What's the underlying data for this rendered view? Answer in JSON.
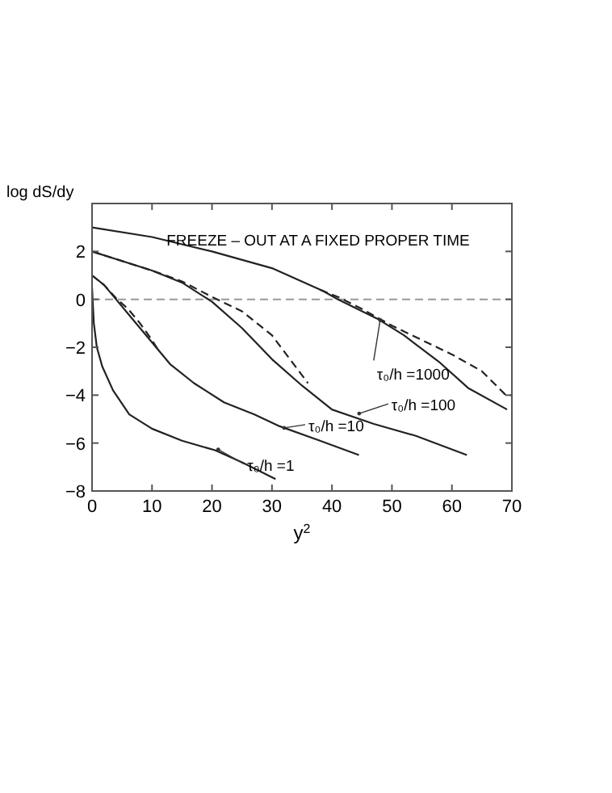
{
  "chart_data": {
    "type": "line",
    "title": "FREEZE – OUT AT A FIXED PROPER TIME",
    "xlabel": "y$^{2}$",
    "ylabel": "log dS/dy",
    "xlim": [
      0,
      70
    ],
    "xticks": [
      0,
      10,
      20,
      30,
      40,
      50,
      60,
      70
    ],
    "ylim": [
      -8,
      4
    ],
    "yticks": [
      -8,
      -6,
      -4,
      -2,
      0,
      2,
      {
        "value": 4,
        "label": null
      }
    ],
    "grid": false,
    "series": [
      {
        "color": "#222222",
        "line_style": "solid",
        "x": [
          0,
          0.3,
          0.8,
          1.7,
          3.5,
          6.2,
          10,
          15,
          20.5,
          25,
          30.6
        ],
        "values": [
          0.5,
          -1,
          -2,
          -2.8,
          -3.8,
          -4.8,
          -5.4,
          -5.9,
          -6.3,
          -6.8,
          -7.5
        ]
      },
      {
        "color": "#222222",
        "line_style": "solid",
        "x": [
          0,
          2,
          4,
          6,
          8,
          10,
          13,
          17,
          22,
          27,
          31.3,
          38,
          44.5
        ],
        "values": [
          1,
          0.6,
          0,
          -0.6,
          -1.2,
          -1.8,
          -2.7,
          -3.5,
          -4.3,
          -4.8,
          -5.3,
          -5.9,
          -6.5
        ]
      },
      {
        "color": "#222222",
        "line_style": "dashed",
        "x": [
          0,
          2,
          4,
          6,
          8,
          10,
          11
        ],
        "values": [
          1,
          0.6,
          0.05,
          -0.4,
          -1,
          -1.7,
          -2.1
        ]
      },
      {
        "color": "#222222",
        "line_style": "solid",
        "x": [
          0,
          5,
          10,
          15,
          20,
          25,
          30,
          35,
          40,
          47,
          54,
          62.5
        ],
        "values": [
          2,
          1.6,
          1.2,
          0.7,
          -0.1,
          -1.2,
          -2.5,
          -3.6,
          -4.6,
          -5.2,
          -5.7,
          -6.5
        ]
      },
      {
        "color": "#222222",
        "line_style": "dashed",
        "x": [
          0,
          10,
          15,
          20,
          25,
          30,
          33,
          36
        ],
        "values": [
          2,
          1.2,
          0.75,
          0.1,
          -0.5,
          -1.5,
          -2.5,
          -3.5
        ]
      },
      {
        "color": "#222222",
        "line_style": "solid",
        "x": [
          0,
          10,
          20,
          30,
          38.5,
          41,
          47.5,
          52,
          57.8,
          62.7,
          69.2
        ],
        "values": [
          3,
          2.6,
          2,
          1.3,
          0.35,
          0,
          -0.8,
          -1.5,
          -2.6,
          -3.7,
          -4.6
        ]
      },
      {
        "color": "#222222",
        "line_style": "dashed",
        "x": [
          38,
          41,
          45,
          50,
          55,
          60,
          65,
          69,
          70
        ],
        "values": [
          0.4,
          0.1,
          -0.4,
          -1.1,
          -1.7,
          -2.3,
          -3,
          -4,
          -4
        ]
      }
    ],
    "ref_lines": [
      {
        "axis": "y",
        "value": 0,
        "color": "#999999",
        "line_style": "dashed"
      }
    ],
    "annotations": [
      {
        "text": "τ₀/h =1",
        "x": 20.5,
        "y": -6.2
      },
      {
        "text": "τ₀/h =10",
        "x": 31.5,
        "y": -5.3
      },
      {
        "text": "τ₀/h =100",
        "x": 44,
        "y": -4.7
      },
      {
        "text": "τ₀/h =1000",
        "x": 47.5,
        "y": -0.8
      }
    ]
  }
}
